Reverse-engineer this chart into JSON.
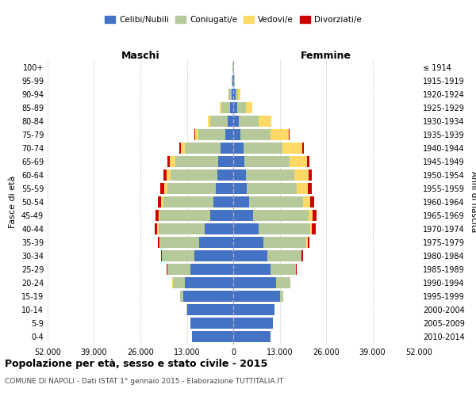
{
  "age_groups": [
    "0-4",
    "5-9",
    "10-14",
    "15-19",
    "20-24",
    "25-29",
    "30-34",
    "35-39",
    "40-44",
    "45-49",
    "50-54",
    "55-59",
    "60-64",
    "65-69",
    "70-74",
    "75-79",
    "80-84",
    "85-89",
    "90-94",
    "95-99",
    "100+"
  ],
  "birth_years": [
    "2010-2014",
    "2005-2009",
    "2000-2004",
    "1995-1999",
    "1990-1994",
    "1985-1989",
    "1980-1984",
    "1975-1979",
    "1970-1974",
    "1965-1969",
    "1960-1964",
    "1955-1959",
    "1950-1954",
    "1945-1949",
    "1940-1944",
    "1935-1939",
    "1930-1934",
    "1925-1929",
    "1920-1924",
    "1915-1919",
    "≤ 1914"
  ],
  "male": {
    "celibe": [
      11500,
      12000,
      13000,
      14000,
      13500,
      12000,
      11000,
      9500,
      8000,
      6500,
      5500,
      5000,
      4500,
      4200,
      3500,
      2200,
      1500,
      900,
      500,
      200,
      100
    ],
    "coniugato": [
      10,
      20,
      50,
      800,
      3500,
      6500,
      9000,
      11000,
      13000,
      14000,
      14000,
      13500,
      13000,
      12000,
      10000,
      7500,
      5000,
      2500,
      800,
      200,
      50
    ],
    "vedovo": [
      0,
      1,
      2,
      5,
      15,
      40,
      80,
      150,
      300,
      500,
      700,
      900,
      1200,
      1500,
      1200,
      900,
      600,
      300,
      100,
      30,
      10
    ],
    "divorziato": [
      1,
      2,
      5,
      20,
      50,
      100,
      200,
      400,
      600,
      800,
      900,
      1000,
      800,
      700,
      400,
      200,
      100,
      50,
      20,
      10,
      5
    ]
  },
  "female": {
    "nubile": [
      10500,
      11000,
      11500,
      13000,
      12000,
      10500,
      9500,
      8500,
      7000,
      5500,
      4500,
      3800,
      3500,
      3200,
      2800,
      2000,
      1600,
      1000,
      600,
      200,
      100
    ],
    "coniugata": [
      10,
      25,
      60,
      900,
      4000,
      7000,
      9500,
      12000,
      14500,
      15500,
      15000,
      14000,
      13500,
      12500,
      11000,
      8500,
      5500,
      2500,
      700,
      150,
      30
    ],
    "vedova": [
      0,
      1,
      3,
      10,
      30,
      80,
      150,
      300,
      600,
      1200,
      2000,
      3000,
      4000,
      5000,
      5500,
      5000,
      3500,
      1800,
      600,
      150,
      30
    ],
    "divorziata": [
      1,
      3,
      8,
      30,
      80,
      200,
      350,
      600,
      900,
      1100,
      1200,
      1200,
      900,
      700,
      500,
      300,
      150,
      80,
      30,
      10,
      5
    ]
  },
  "colors": {
    "celibe": "#4472C4",
    "coniugato": "#b5c99a",
    "vedovo": "#ffd966",
    "divorziato": "#cc0000"
  },
  "xlim": 52000,
  "title": "Popolazione per età, sesso e stato civile - 2015",
  "subtitle": "COMUNE DI NAPOLI - Dati ISTAT 1° gennaio 2015 - Elaborazione TUTTITALIA.IT",
  "ylabel_left": "Fasce di età",
  "ylabel_right": "Anni di nascita",
  "header_male": "Maschi",
  "header_female": "Femmine",
  "legend_labels": [
    "Celibi/Nubili",
    "Coniugati/e",
    "Vedovi/e",
    "Divorziati/e"
  ],
  "background_color": "#ffffff",
  "bar_height": 0.85
}
